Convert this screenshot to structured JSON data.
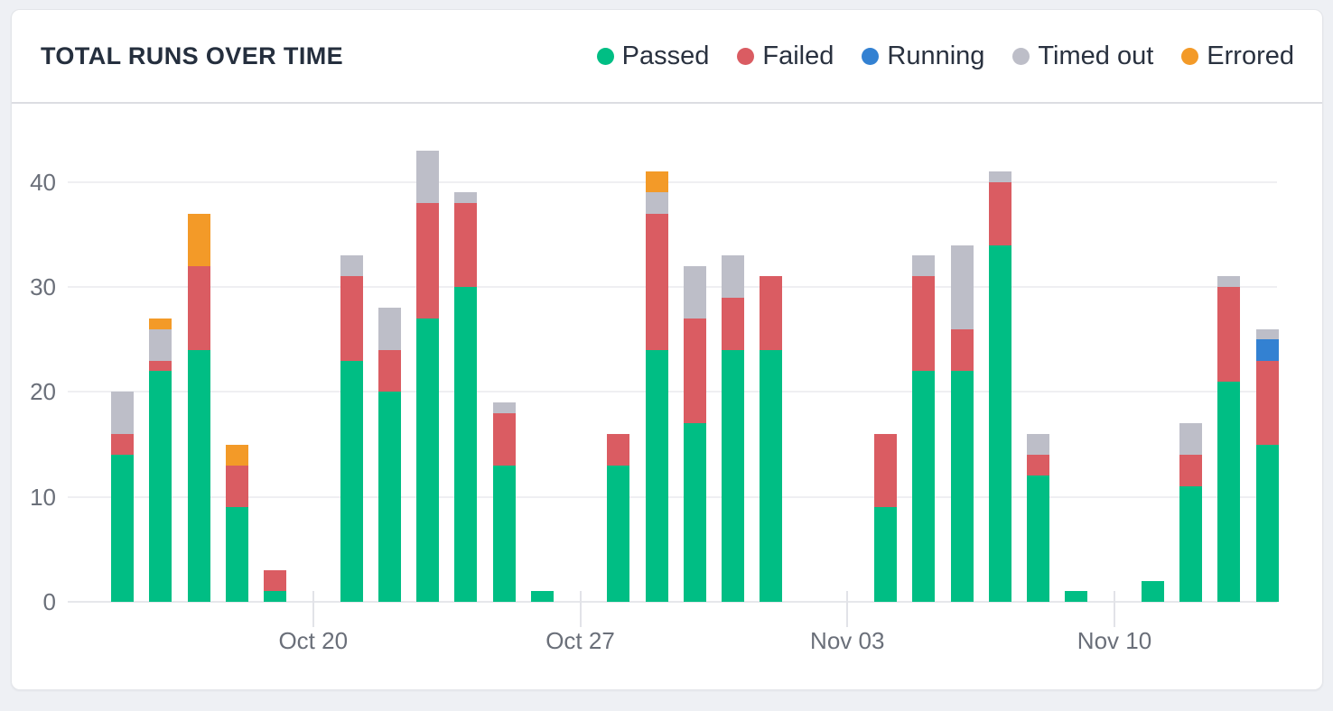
{
  "header": {
    "title": "TOTAL RUNS OVER TIME"
  },
  "legend": [
    {
      "key": "passed",
      "label": "Passed",
      "color": "#00BE84"
    },
    {
      "key": "failed",
      "label": "Failed",
      "color": "#DA5C62"
    },
    {
      "key": "running",
      "label": "Running",
      "color": "#3381D2"
    },
    {
      "key": "timed_out",
      "label": "Timed out",
      "color": "#BDBEC8"
    },
    {
      "key": "errored",
      "label": "Errored",
      "color": "#F39A28"
    }
  ],
  "chart_data": {
    "type": "bar",
    "subtype": "stacked",
    "title": "TOTAL RUNS OVER TIME",
    "xlabel": "",
    "ylabel": "",
    "ylim": [
      0,
      45
    ],
    "y_ticks": [
      0,
      10,
      20,
      30,
      40
    ],
    "grid": true,
    "legend_position": "top-right",
    "series_order": [
      "passed",
      "failed",
      "running",
      "timed_out",
      "errored"
    ],
    "series_colors": {
      "passed": "#00BE84",
      "failed": "#DA5C62",
      "running": "#3381D2",
      "timed_out": "#BDBEC8",
      "errored": "#F39A28"
    },
    "x_tick_labels": [
      "Oct 20",
      "Oct 27",
      "Nov 03",
      "Nov 10"
    ],
    "bars": [
      {
        "date": "Oct 15",
        "passed": 14,
        "failed": 2,
        "running": 0,
        "timed_out": 4,
        "errored": 0,
        "tick": ""
      },
      {
        "date": "Oct 16",
        "passed": 22,
        "failed": 1,
        "running": 0,
        "timed_out": 3,
        "errored": 1,
        "tick": ""
      },
      {
        "date": "Oct 17",
        "passed": 24,
        "failed": 8,
        "running": 0,
        "timed_out": 0,
        "errored": 5,
        "tick": ""
      },
      {
        "date": "Oct 18",
        "passed": 9,
        "failed": 4,
        "running": 0,
        "timed_out": 0,
        "errored": 2,
        "tick": ""
      },
      {
        "date": "Oct 19",
        "passed": 1,
        "failed": 2,
        "running": 0,
        "timed_out": 0,
        "errored": 0,
        "tick": ""
      },
      {
        "date": "Oct 20",
        "passed": 0,
        "failed": 0,
        "running": 0,
        "timed_out": 0,
        "errored": 0,
        "tick": "Oct 20"
      },
      {
        "date": "Oct 21",
        "passed": 23,
        "failed": 8,
        "running": 0,
        "timed_out": 2,
        "errored": 0,
        "tick": ""
      },
      {
        "date": "Oct 22",
        "passed": 20,
        "failed": 4,
        "running": 0,
        "timed_out": 4,
        "errored": 0,
        "tick": ""
      },
      {
        "date": "Oct 23",
        "passed": 27,
        "failed": 11,
        "running": 0,
        "timed_out": 5,
        "errored": 0,
        "tick": ""
      },
      {
        "date": "Oct 24",
        "passed": 30,
        "failed": 8,
        "running": 0,
        "timed_out": 1,
        "errored": 0,
        "tick": ""
      },
      {
        "date": "Oct 25",
        "passed": 13,
        "failed": 5,
        "running": 0,
        "timed_out": 1,
        "errored": 0,
        "tick": ""
      },
      {
        "date": "Oct 26",
        "passed": 1,
        "failed": 0,
        "running": 0,
        "timed_out": 0,
        "errored": 0,
        "tick": ""
      },
      {
        "date": "Oct 27",
        "passed": 0,
        "failed": 0,
        "running": 0,
        "timed_out": 0,
        "errored": 0,
        "tick": "Oct 27"
      },
      {
        "date": "Oct 28",
        "passed": 13,
        "failed": 3,
        "running": 0,
        "timed_out": 0,
        "errored": 0,
        "tick": ""
      },
      {
        "date": "Oct 29",
        "passed": 24,
        "failed": 13,
        "running": 0,
        "timed_out": 2,
        "errored": 2,
        "tick": ""
      },
      {
        "date": "Oct 30",
        "passed": 17,
        "failed": 10,
        "running": 0,
        "timed_out": 5,
        "errored": 0,
        "tick": ""
      },
      {
        "date": "Oct 31",
        "passed": 24,
        "failed": 5,
        "running": 0,
        "timed_out": 4,
        "errored": 0,
        "tick": ""
      },
      {
        "date": "Nov 01",
        "passed": 24,
        "failed": 7,
        "running": 0,
        "timed_out": 0,
        "errored": 0,
        "tick": ""
      },
      {
        "date": "Nov 02",
        "passed": 0,
        "failed": 0,
        "running": 0,
        "timed_out": 0,
        "errored": 0,
        "tick": ""
      },
      {
        "date": "Nov 03",
        "passed": 0,
        "failed": 0,
        "running": 0,
        "timed_out": 0,
        "errored": 0,
        "tick": "Nov 03"
      },
      {
        "date": "Nov 04",
        "passed": 9,
        "failed": 7,
        "running": 0,
        "timed_out": 0,
        "errored": 0,
        "tick": ""
      },
      {
        "date": "Nov 05",
        "passed": 22,
        "failed": 9,
        "running": 0,
        "timed_out": 2,
        "errored": 0,
        "tick": ""
      },
      {
        "date": "Nov 06",
        "passed": 22,
        "failed": 4,
        "running": 0,
        "timed_out": 8,
        "errored": 0,
        "tick": ""
      },
      {
        "date": "Nov 07",
        "passed": 34,
        "failed": 6,
        "running": 0,
        "timed_out": 1,
        "errored": 0,
        "tick": ""
      },
      {
        "date": "Nov 08",
        "passed": 12,
        "failed": 2,
        "running": 0,
        "timed_out": 2,
        "errored": 0,
        "tick": ""
      },
      {
        "date": "Nov 09",
        "passed": 1,
        "failed": 0,
        "running": 0,
        "timed_out": 0,
        "errored": 0,
        "tick": ""
      },
      {
        "date": "Nov 10",
        "passed": 0,
        "failed": 0,
        "running": 0,
        "timed_out": 0,
        "errored": 0,
        "tick": "Nov 10"
      },
      {
        "date": "Nov 11",
        "passed": 2,
        "failed": 0,
        "running": 0,
        "timed_out": 0,
        "errored": 0,
        "tick": ""
      },
      {
        "date": "Nov 12",
        "passed": 11,
        "failed": 3,
        "running": 0,
        "timed_out": 3,
        "errored": 0,
        "tick": ""
      },
      {
        "date": "Nov 13",
        "passed": 21,
        "failed": 9,
        "running": 0,
        "timed_out": 1,
        "errored": 0,
        "tick": ""
      },
      {
        "date": "Nov 14",
        "passed": 15,
        "failed": 8,
        "running": 2,
        "timed_out": 1,
        "errored": 0,
        "tick": ""
      }
    ]
  }
}
